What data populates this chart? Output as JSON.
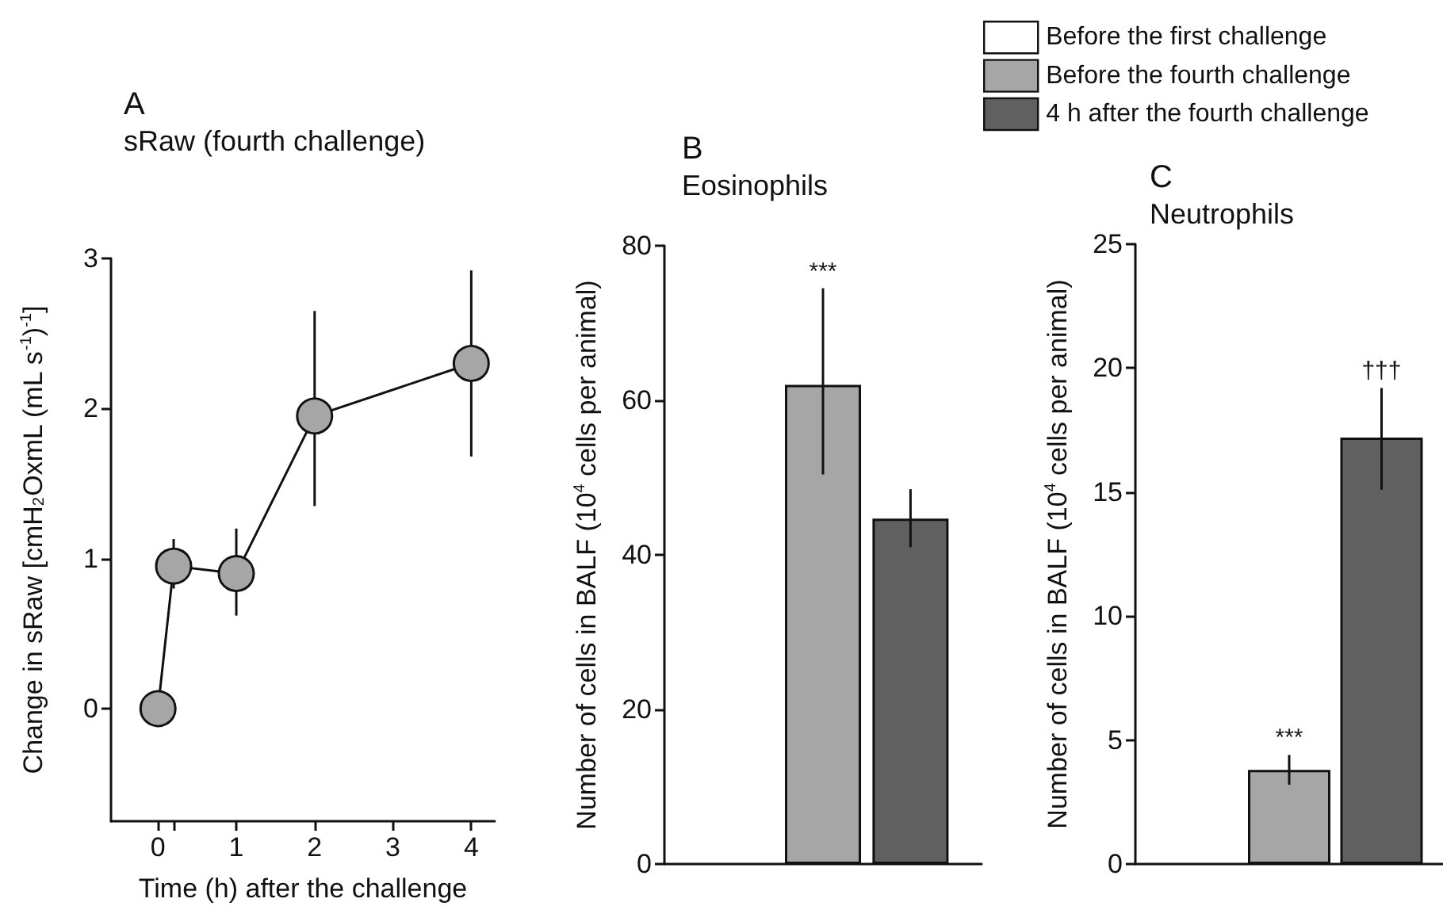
{
  "chart_data": [
    {
      "type": "line",
      "title": "A",
      "subtitle": "sRaw (fourth challenge)",
      "xlabel": "Time (h) after the challenge",
      "ylabel": "Change in sRaw [cmH$_{2}$OxmL (mL s$^{-1}$)$^{-1}$]",
      "x": [
        0,
        0.2,
        1,
        2,
        4
      ],
      "series": [
        {
          "color": "#a6a6a6",
          "values": [
            0,
            0.95,
            0.9,
            1.95,
            2.3
          ],
          "errors": [
            null,
            [
              0.8,
              1.13
            ],
            [
              0.62,
              1.2
            ],
            [
              1.35,
              2.65
            ],
            [
              1.68,
              2.92
            ]
          ]
        }
      ],
      "xlim": [
        -0.6,
        4.3
      ],
      "ylim": [
        -0.75,
        3
      ],
      "xticks": [
        0,
        {
          "value": 0.2,
          "label": null
        },
        1,
        2,
        3,
        4
      ],
      "yticks": [
        0,
        1,
        2,
        3
      ],
      "grid": false,
      "marker": "circle"
    },
    {
      "type": "bar",
      "title": "B",
      "subtitle": "Eosinophils",
      "ylabel": "Number of cells in BALF (10$^{4}$ cells per animal)",
      "categories": [
        null
      ],
      "series": [
        {
          "color": "#ffffff",
          "values": [
            null
          ]
        },
        {
          "color": "#a6a6a6",
          "values": [
            62
          ],
          "errors": [
            [
              50.4,
              74.5
            ]
          ]
        },
        {
          "color": "#606060",
          "values": [
            44.7
          ],
          "errors": [
            [
              41,
              48.5
            ]
          ]
        }
      ],
      "annotations": [
        "***"
      ],
      "ylim": [
        0,
        80
      ],
      "yticks": [
        0,
        20,
        40,
        60,
        80
      ],
      "tick_labels": "y",
      "grid": false
    },
    {
      "type": "bar",
      "title": "C",
      "subtitle": "Neutrophils",
      "ylabel": "Number of cells in BALF (10$^{4}$ cells per animal)",
      "categories": [
        null
      ],
      "series": [
        {
          "name": "Before the first challenge",
          "color": "#ffffff",
          "values": [
            null
          ]
        },
        {
          "name": "Before the fourth challenge",
          "color": "#a6a6a6",
          "values": [
            3.8
          ],
          "errors": [
            [
              3.2,
              4.4
            ]
          ]
        },
        {
          "name": "4 h after the fourth challenge",
          "color": "#606060",
          "values": [
            17.2
          ],
          "errors": [
            [
              15.1,
              19.2
            ]
          ]
        }
      ],
      "annotations": [
        "***",
        "†††"
      ],
      "ylim": [
        0,
        25
      ],
      "yticks": [
        0,
        5,
        10,
        15,
        20,
        25
      ],
      "tick_labels": "y",
      "grid": false,
      "legend": "top"
    }
  ]
}
